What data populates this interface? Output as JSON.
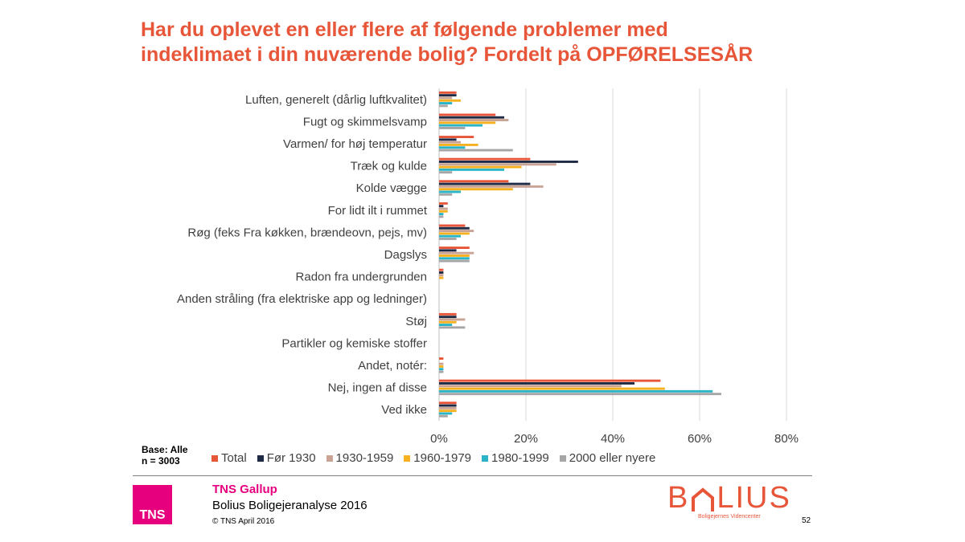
{
  "title_lines": [
    "Har du oplevet en eller flere af følgende problemer med",
    "indeklimaet i din nuværende bolig? Fordelt på OPFØRELSESÅR"
  ],
  "base_note": [
    "Base: Alle",
    "n = 3003"
  ],
  "footer": {
    "brand": "TNS Gallup",
    "report": "Bolius Boligejeranalyse 2016",
    "copyright": "© TNS   April 2016",
    "tns_logo": "TNS",
    "bolius_logo": "BOLIUS",
    "bolius_tagline": "Boligejernes Videncenter",
    "page_number": "52"
  },
  "chart_data": {
    "type": "bar",
    "orientation": "horizontal",
    "title": "Har du oplevet en eller flere af følgende problemer med indeklimaet i din nuværende bolig? Fordelt på OPFØRELSESÅR",
    "categories": [
      "Luften, generelt (dårlig luftkvalitet)",
      "Fugt og skimmelsvamp",
      "Varmen/ for høj temperatur",
      "Træk og kulde",
      "Kolde vægge",
      "For lidt ilt i rummet",
      "Røg (feks Fra køkken, brændeovn, pejs, mv)",
      "Dagslys",
      "Radon fra undergrunden",
      "Anden stråling (fra elektriske app og ledninger)",
      "Støj",
      "Partikler og kemiske stoffer",
      "Andet, notér:",
      "Nej, ingen af disse",
      "Ved ikke"
    ],
    "series": [
      {
        "name": "Total",
        "color": "#e8563a",
        "values": [
          4,
          13,
          8,
          21,
          16,
          2,
          6,
          7,
          1,
          0,
          4,
          0,
          1,
          51,
          4
        ]
      },
      {
        "name": "Før 1930",
        "color": "#1f2a44",
        "values": [
          4,
          15,
          4,
          32,
          21,
          1,
          7,
          4,
          1,
          0,
          4,
          0,
          0,
          45,
          4
        ]
      },
      {
        "name": "1930-1959",
        "color": "#c9a394",
        "values": [
          3,
          16,
          5,
          27,
          24,
          2,
          8,
          8,
          1,
          0,
          6,
          0,
          1,
          42,
          4
        ]
      },
      {
        "name": "1960-1979",
        "color": "#f5b120",
        "values": [
          5,
          13,
          9,
          19,
          17,
          2,
          7,
          7,
          1,
          0,
          4,
          0,
          1,
          52,
          4
        ]
      },
      {
        "name": "1980-1999",
        "color": "#29b5c7",
        "values": [
          3,
          10,
          6,
          15,
          5,
          1,
          5,
          7,
          0,
          0,
          3,
          0,
          1,
          63,
          3
        ]
      },
      {
        "name": "2000 eller nyere",
        "color": "#a6a6a6",
        "values": [
          2,
          6,
          17,
          3,
          3,
          1,
          4,
          7,
          0,
          0,
          6,
          0,
          1,
          65,
          2
        ]
      }
    ],
    "xlim": [
      0,
      80
    ],
    "xticks": [
      "0%",
      "20%",
      "40%",
      "60%",
      "80%"
    ],
    "grid": true,
    "legend_position": "bottom"
  }
}
